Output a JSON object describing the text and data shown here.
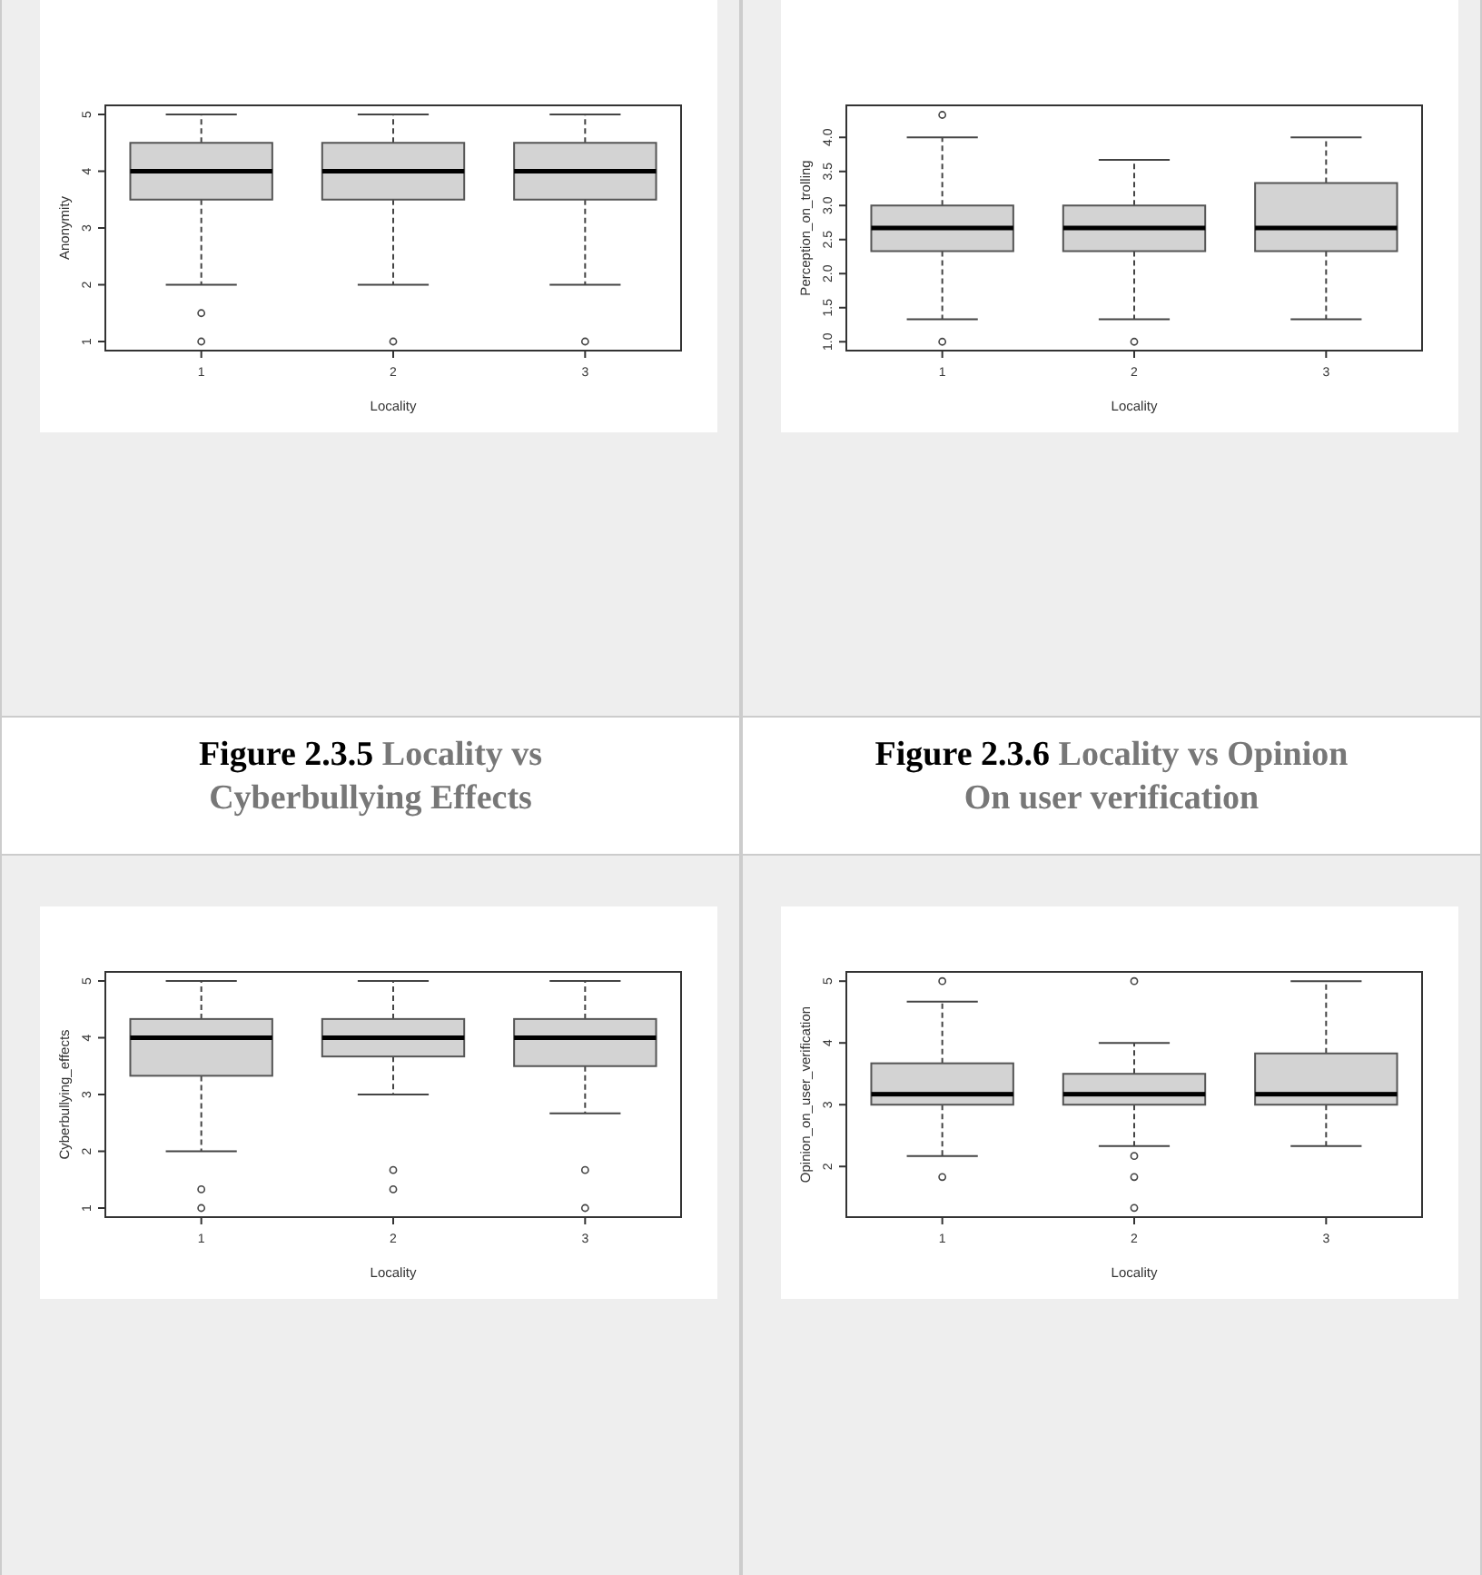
{
  "chart_data": [
    {
      "type": "box",
      "categories": [
        "1",
        "2",
        "3"
      ],
      "xlabel": "Locality",
      "ylabel": "Anonymity",
      "color": "#d3d3d3",
      "ylim": [
        0.84,
        5.16
      ],
      "yticks": [
        1,
        2,
        3,
        4,
        5
      ],
      "boxes": [
        {
          "low": 2,
          "q1": 3.5,
          "median": 4,
          "q3": 4.5,
          "high": 5,
          "outliers": [
            1.5,
            1
          ]
        },
        {
          "low": 2,
          "q1": 3.5,
          "median": 4,
          "q3": 4.5,
          "high": 5,
          "outliers": [
            1
          ]
        },
        {
          "low": 2,
          "q1": 3.5,
          "median": 4,
          "q3": 4.5,
          "high": 5,
          "outliers": [
            1
          ]
        }
      ]
    },
    {
      "type": "box",
      "categories": [
        "1",
        "2",
        "3"
      ],
      "xlabel": "Locality",
      "ylabel": "Perception_on_trolling",
      "color": "#d3d3d3",
      "ylim": [
        0.87,
        4.47
      ],
      "yticks": [
        {
          "value": 1,
          "label": "1.0"
        },
        {
          "value": 1.5,
          "label": "1.5"
        },
        {
          "value": 2,
          "label": "2.0"
        },
        {
          "value": 2.5,
          "label": "2.5"
        },
        {
          "value": 3,
          "label": "3.0"
        },
        {
          "value": 3.5,
          "label": "3.5"
        },
        {
          "value": 4,
          "label": "4.0"
        }
      ],
      "boxes": [
        {
          "low": 1.33,
          "q1": 2.33,
          "median": 2.67,
          "q3": 3,
          "high": 4,
          "outliers": [
            4.33,
            1
          ]
        },
        {
          "low": 1.33,
          "q1": 2.33,
          "median": 2.67,
          "q3": 3,
          "high": 3.67,
          "outliers": [
            1
          ]
        },
        {
          "low": 1.33,
          "q1": 2.33,
          "median": 2.67,
          "q3": 3.33,
          "high": 4
        }
      ]
    },
    {
      "type": "box",
      "title": "Figure 2.3.5",
      "subtitle": "Locality vs Cyberbullying Effects",
      "categories": [
        "1",
        "2",
        "3"
      ],
      "xlabel": "Locality",
      "ylabel": "Cyberbullying_effects",
      "color": "#d3d3d3",
      "ylim": [
        0.84,
        5.16
      ],
      "yticks": [
        1,
        2,
        3,
        4,
        5
      ],
      "boxes": [
        {
          "low": 2,
          "q1": 3.33,
          "median": 4,
          "q3": 4.33,
          "high": 5,
          "outliers": [
            1.33,
            1
          ]
        },
        {
          "low": 3,
          "q1": 3.67,
          "median": 4,
          "q3": 4.33,
          "high": 5,
          "outliers": [
            1.67,
            1.33
          ]
        },
        {
          "low": 2.67,
          "q1": 3.5,
          "median": 4,
          "q3": 4.33,
          "high": 5,
          "outliers": [
            1.67,
            1
          ]
        }
      ]
    },
    {
      "type": "box",
      "title": "Figure 2.3.6",
      "subtitle": "Locality vs Opinion On user verification",
      "categories": [
        "1",
        "2",
        "3"
      ],
      "xlabel": "Locality",
      "ylabel": "Opinion_on_user_verification",
      "color": "#d3d3d3",
      "ylim": [
        1.18,
        5.15
      ],
      "yticks": [
        2,
        3,
        4,
        5
      ],
      "boxes": [
        {
          "low": 2.17,
          "q1": 3,
          "median": 3.17,
          "q3": 3.67,
          "high": 4.67,
          "outliers": [
            5,
            1.83
          ]
        },
        {
          "low": 2.33,
          "q1": 3,
          "median": 3.17,
          "q3": 3.5,
          "high": 4,
          "outliers": [
            5,
            2.17,
            1.83,
            1.33
          ]
        },
        {
          "low": 2.33,
          "q1": 3,
          "median": 3.17,
          "q3": 3.83,
          "high": 5
        }
      ]
    }
  ]
}
